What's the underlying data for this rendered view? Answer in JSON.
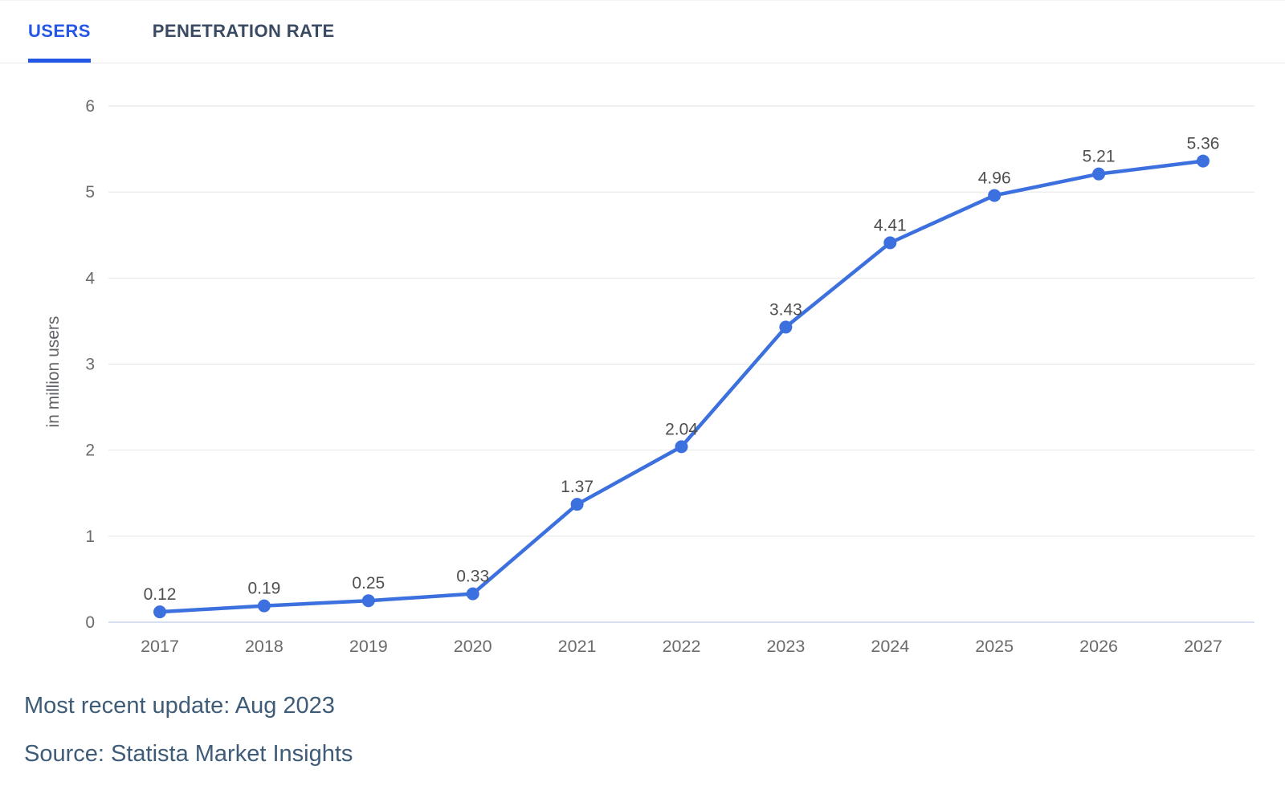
{
  "header": {
    "tabs": [
      {
        "label": "USERS",
        "active": true
      },
      {
        "label": "PENETRATION RATE",
        "active": false
      }
    ]
  },
  "footer": {
    "updated": "Most recent update: Aug 2023",
    "source": "Source: Statista Market Insights"
  },
  "colors": {
    "accent_blue": "#2457e6",
    "line_blue": "#3c70de",
    "inactive_tab": "#3b4a63",
    "grid": "#e8e8e8",
    "zero_axis": "#ccd5ea",
    "tick_label": "#6b6b6b",
    "data_label": "#4f4f4f",
    "footer_text": "#3e5c78"
  },
  "chart_data": {
    "type": "line",
    "title": "",
    "categories": [
      "2017",
      "2018",
      "2019",
      "2020",
      "2021",
      "2022",
      "2023",
      "2024",
      "2025",
      "2026",
      "2027"
    ],
    "series": [
      {
        "name": "Users",
        "values": [
          0.12,
          0.19,
          0.25,
          0.33,
          1.37,
          2.04,
          3.43,
          4.41,
          4.96,
          5.21,
          5.36
        ]
      }
    ],
    "xlabel": "",
    "ylabel": "in million users",
    "ylim": [
      0,
      6
    ],
    "yticks": [
      0,
      1,
      2,
      3,
      4,
      5,
      6
    ],
    "grid": true,
    "legend": false,
    "point_labels": true,
    "point_label_format": "2dp"
  }
}
